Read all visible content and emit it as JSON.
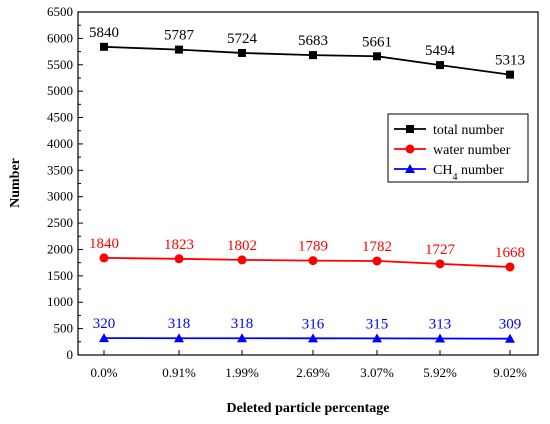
{
  "chart_data": {
    "type": "line",
    "title": "",
    "xlabel": "Deleted particle percentage",
    "ylabel": "Number",
    "categories": [
      "0.0%",
      "0.91%",
      "1.99%",
      "2.69%",
      "3.07%",
      "5.92%",
      "9.02%"
    ],
    "ylim": [
      0,
      6500
    ],
    "yticks": [
      0,
      500,
      1000,
      1500,
      2000,
      2500,
      3000,
      3500,
      4000,
      4500,
      5000,
      5500,
      6000,
      6500
    ],
    "grid": false,
    "legend_position": "top-right",
    "series": [
      {
        "name": "total number",
        "values": [
          5840,
          5787,
          5724,
          5683,
          5661,
          5494,
          5313
        ],
        "color": "#000000",
        "marker": "square"
      },
      {
        "name": "water number",
        "values": [
          1840,
          1823,
          1802,
          1789,
          1782,
          1727,
          1668
        ],
        "color": "#ff0000",
        "marker": "circle"
      },
      {
        "name": "CH4 number",
        "name_base": "CH",
        "name_sub": "4",
        "name_tail": " number",
        "values": [
          320,
          318,
          318,
          316,
          315,
          313,
          309
        ],
        "color": "#0000ff",
        "marker": "triangle"
      }
    ]
  }
}
